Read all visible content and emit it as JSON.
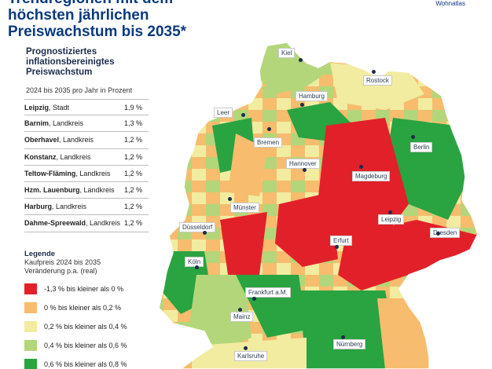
{
  "header": {
    "title_line1": "Trendregionen mit dem",
    "title_line2": "höchsten jährlichen",
    "title_line3": "Preiswachstum bis 2035*",
    "brand": "Wohnatlas"
  },
  "panel": {
    "subtitle_line1": "Prognostiziertes",
    "subtitle_line2": "inflationsbereinigtes",
    "subtitle_line3": "Preiswachstum",
    "period": "2024 bis 2035 pro Jahr in Prozent"
  },
  "table": [
    {
      "name": "Leipzig",
      "type": ", Stadt",
      "value": "1,9 %"
    },
    {
      "name": "Barnim",
      "type": ", Landkreis",
      "value": "1,3 %"
    },
    {
      "name": "Oberhavel",
      "type": ", Landkreis",
      "value": "1,2 %"
    },
    {
      "name": "Konstanz",
      "type": ", Landkreis",
      "value": "1,2 %"
    },
    {
      "name": "Teltow-Fläming",
      "type": ", Landkreis",
      "value": "1,2 %"
    },
    {
      "name": "Hzm. Lauenburg",
      "type": ", Landkreis",
      "value": "1,2 %"
    },
    {
      "name": "Harburg",
      "type": ", Landkreis",
      "value": "1,2 %"
    },
    {
      "name": "Dahme-Spreewald",
      "type": ", Landkreis",
      "value": "1,2 %"
    }
  ],
  "legend": {
    "title": "Legende",
    "subtitle_line1": "Kaufpreis 2024 bis 2035",
    "subtitle_line2": "Veränderung p.a. (real)",
    "items": [
      {
        "label": "-1,3 % bis kleiner als 0 %",
        "color": "#e2202a"
      },
      {
        "label": "0 % bis kleiner als 0,2 %",
        "color": "#f7bc6d"
      },
      {
        "label": "0,2 % bis kleiner als 0,4 %",
        "color": "#f1eca0"
      },
      {
        "label": "0,4 % bis kleiner als 0,6 %",
        "color": "#b3d67a"
      },
      {
        "label": "0,6 % bis kleiner als 0,8 %",
        "color": "#2aa341"
      }
    ]
  },
  "cities": [
    {
      "name": "Kiel"
    },
    {
      "name": "Rostock"
    },
    {
      "name": "Hamburg"
    },
    {
      "name": "Leer"
    },
    {
      "name": "Bremen"
    },
    {
      "name": "Berlin"
    },
    {
      "name": "Hannover"
    },
    {
      "name": "Magdeburg"
    },
    {
      "name": "Münster"
    },
    {
      "name": "Leipzig"
    },
    {
      "name": "Düsseldorf"
    },
    {
      "name": "Erfurt"
    },
    {
      "name": "Dresden"
    },
    {
      "name": "Köln"
    },
    {
      "name": "Frankfurt a.M."
    },
    {
      "name": "Mainz"
    },
    {
      "name": "Nürnberg"
    },
    {
      "name": "Karlsruhe"
    }
  ]
}
